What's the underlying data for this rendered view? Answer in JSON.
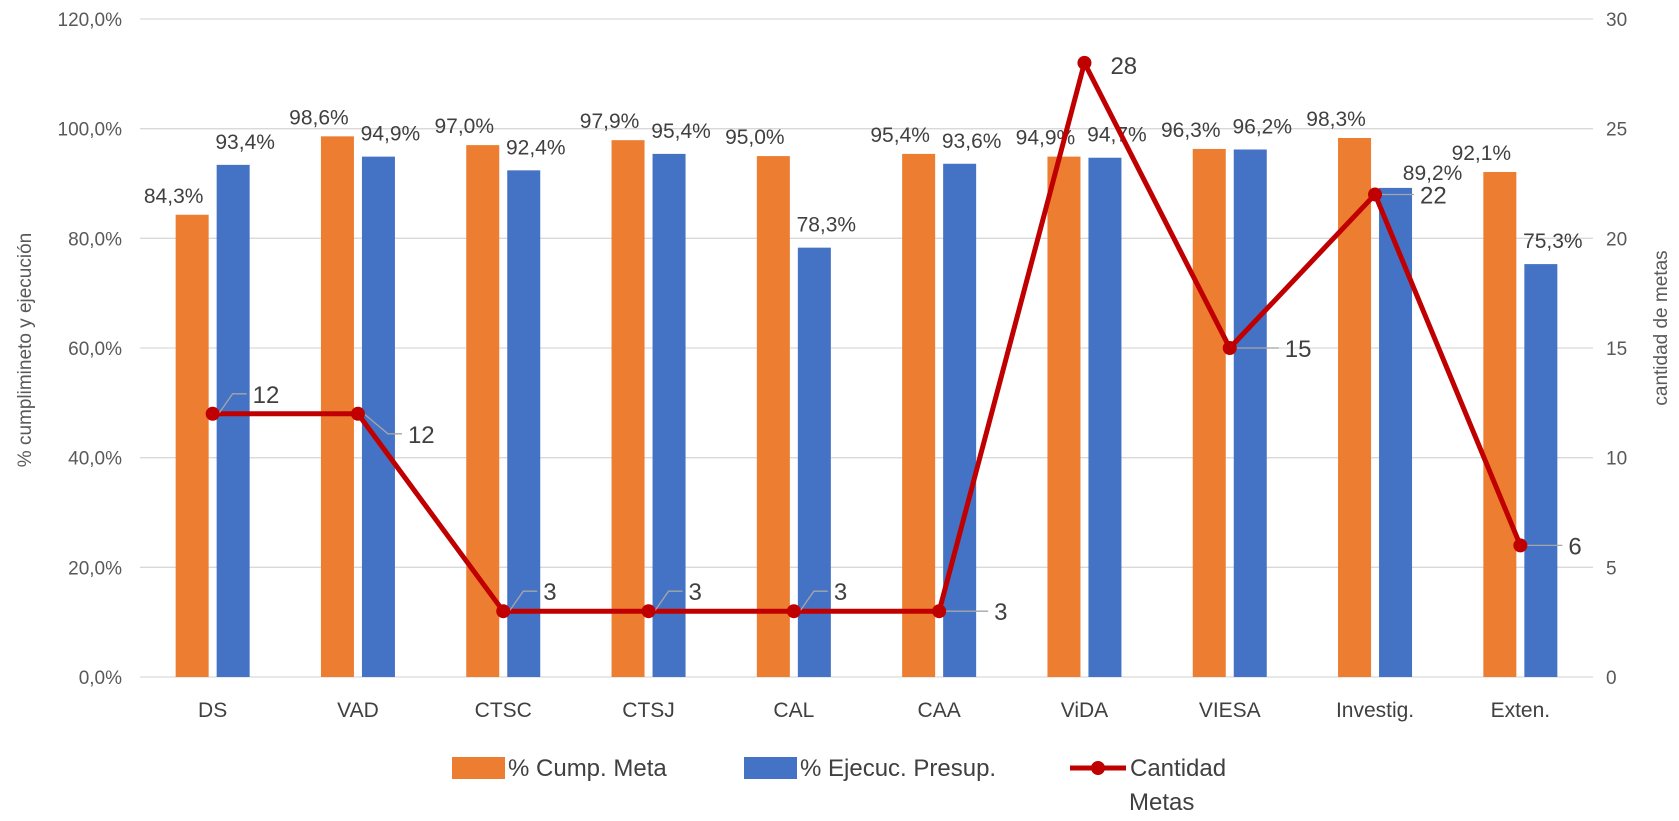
{
  "chart_data": {
    "type": "bar",
    "combo": "bar+line",
    "categories": [
      "DS",
      "VAD",
      "CTSC",
      "CTSJ",
      "CAL",
      "CAA",
      "ViDA",
      "VIESA",
      "Investig.",
      "Exten."
    ],
    "series": [
      {
        "name": "% Cump. Meta",
        "type": "bar",
        "axis": "left",
        "color": "#ED7D31",
        "values": [
          84.3,
          98.6,
          97.0,
          97.9,
          95.0,
          95.4,
          94.9,
          96.3,
          98.3,
          92.1
        ],
        "labels": [
          "84,3%",
          "98,6%",
          "97,0%",
          "97,9%",
          "95,0%",
          "95,4%",
          "94,9%",
          "96,3%",
          "98,3%",
          "92,1%"
        ]
      },
      {
        "name": "% Ejecuc. Presup.",
        "type": "bar",
        "axis": "left",
        "color": "#4472C4",
        "values": [
          93.4,
          94.9,
          92.4,
          95.4,
          78.3,
          93.6,
          94.7,
          96.2,
          89.2,
          75.3
        ],
        "labels": [
          "93,4%",
          "94,9%",
          "92,4%",
          "95,4%",
          "78,3%",
          "93,6%",
          "94,7%",
          "96,2%",
          "89,2%",
          "75,3%"
        ]
      },
      {
        "name": "Cantidad Metas",
        "type": "line",
        "axis": "right",
        "color": "#C00000",
        "values": [
          12,
          12,
          3,
          3,
          3,
          3,
          28,
          15,
          22,
          6
        ],
        "labels": [
          "12",
          "12",
          "3",
          "3",
          "3",
          "3",
          "28",
          "15",
          "22",
          "6"
        ]
      }
    ],
    "left_axis": {
      "title": "% cumplimineto y ejecución",
      "min": 0,
      "max": 120,
      "step": 20,
      "tick_labels": [
        "0,0%",
        "20,0%",
        "40,0%",
        "60,0%",
        "80,0%",
        "100,0%",
        "120,0%"
      ]
    },
    "right_axis": {
      "title": "cantidad de metas",
      "min": 0,
      "max": 30,
      "step": 5,
      "tick_labels": [
        "0",
        "5",
        "10",
        "15",
        "20",
        "25",
        "30"
      ]
    },
    "grid": true,
    "legend_position": "bottom",
    "legend": {
      "items": [
        "% Cump. Meta",
        "% Ejecuc. Presup."
      ],
      "line_item_line1": "Cantidad",
      "line_item_line2": "Metas"
    },
    "colors": {
      "orange": "#ED7D31",
      "blue": "#4472C4",
      "red": "#C00000",
      "grid": "#D9D9D9"
    }
  }
}
